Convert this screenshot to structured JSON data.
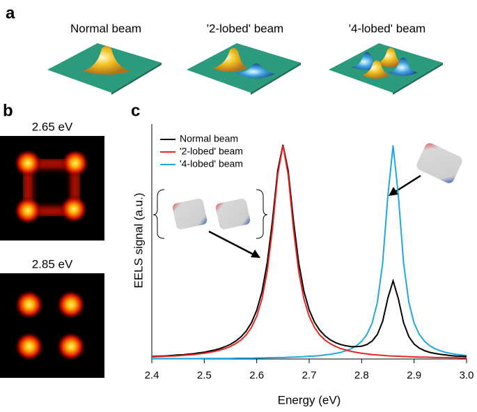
{
  "panel_labels": [
    "a",
    "b",
    "c"
  ],
  "beam_titles": [
    "Normal beam",
    "'2-lobed' beam",
    "'4-lobed' beam"
  ],
  "map_titles": [
    "2.65 eV",
    "2.85 eV"
  ],
  "chart_data": {
    "type": "line",
    "xlabel": "Energy (eV)",
    "ylabel": "EELS signal (a.u.)",
    "xlim": [
      2.4,
      3.0
    ],
    "xticks": [
      2.4,
      2.5,
      2.6,
      2.7,
      2.8,
      2.9,
      {
        "value": 3,
        "label": "3.0"
      }
    ],
    "ylim": [
      0,
      1.1
    ],
    "legend": "upper left",
    "x": [
      2.4,
      2.41,
      2.42,
      2.43,
      2.44,
      2.45,
      2.46,
      2.47,
      2.48,
      2.49,
      2.5,
      2.51,
      2.52,
      2.53,
      2.54,
      2.55,
      2.56,
      2.57,
      2.58,
      2.59,
      2.6,
      2.61,
      2.62,
      2.63,
      2.64,
      2.65,
      2.66,
      2.67,
      2.68,
      2.69,
      2.7,
      2.71,
      2.72,
      2.73,
      2.74,
      2.75,
      2.76,
      2.77,
      2.78,
      2.79,
      2.8,
      2.81,
      2.82,
      2.83,
      2.84,
      2.85,
      2.86,
      2.87,
      2.88,
      2.89,
      2.9,
      2.91,
      2.92,
      2.93,
      2.94,
      2.95,
      2.96,
      2.97,
      2.98,
      2.99,
      3.0
    ],
    "series": [
      {
        "name": "Normal beam",
        "color": "#000000",
        "values": [
          0.012,
          0.013,
          0.014,
          0.015,
          0.017,
          0.019,
          0.02,
          0.023,
          0.025,
          0.029,
          0.032,
          0.037,
          0.042,
          0.049,
          0.058,
          0.069,
          0.084,
          0.104,
          0.131,
          0.17,
          0.228,
          0.315,
          0.45,
          0.648,
          0.882,
          1.003,
          0.882,
          0.649,
          0.451,
          0.317,
          0.23,
          0.173,
          0.135,
          0.109,
          0.09,
          0.077,
          0.068,
          0.062,
          0.058,
          0.058,
          0.06,
          0.068,
          0.084,
          0.115,
          0.176,
          0.285,
          0.366,
          0.282,
          0.17,
          0.105,
          0.07,
          0.051,
          0.039,
          0.031,
          0.026,
          0.022,
          0.019,
          0.016,
          0.014,
          0.013,
          0.012
        ]
      },
      {
        "name": "'2-lobed' beam",
        "color": "#e8251f",
        "values": [
          0.01,
          0.011,
          0.012,
          0.013,
          0.014,
          0.015,
          0.017,
          0.019,
          0.021,
          0.024,
          0.027,
          0.031,
          0.036,
          0.042,
          0.049,
          0.059,
          0.072,
          0.089,
          0.113,
          0.148,
          0.2,
          0.281,
          0.41,
          0.61,
          0.862,
          1,
          0.862,
          0.61,
          0.41,
          0.281,
          0.2,
          0.148,
          0.113,
          0.089,
          0.072,
          0.059,
          0.049,
          0.042,
          0.036,
          0.031,
          0.027,
          0.024,
          0.021,
          0.019,
          0.017,
          0.015,
          0.014,
          0.013,
          0.012,
          0.011,
          0.01,
          0.009,
          0.009,
          0.008,
          0.007,
          0.007,
          0.007,
          0.006,
          0.006,
          0.005,
          0.005
        ]
      },
      {
        "name": "'4-lobed' beam",
        "color": "#1ea7e1",
        "values": [
          0.002,
          0.002,
          0.002,
          0.002,
          0.002,
          0.002,
          0.002,
          0.002,
          0.002,
          0.002,
          0.003,
          0.003,
          0.003,
          0.003,
          0.003,
          0.003,
          0.004,
          0.004,
          0.004,
          0.004,
          0.005,
          0.005,
          0.006,
          0.006,
          0.007,
          0.007,
          0.008,
          0.009,
          0.01,
          0.011,
          0.013,
          0.014,
          0.016,
          0.019,
          0.022,
          0.026,
          0.031,
          0.039,
          0.048,
          0.062,
          0.083,
          0.115,
          0.168,
          0.265,
          0.448,
          0.764,
          1,
          0.764,
          0.448,
          0.265,
          0.168,
          0.115,
          0.083,
          0.062,
          0.048,
          0.039,
          0.031,
          0.026,
          0.022,
          0.019,
          0.016
        ]
      }
    ]
  }
}
